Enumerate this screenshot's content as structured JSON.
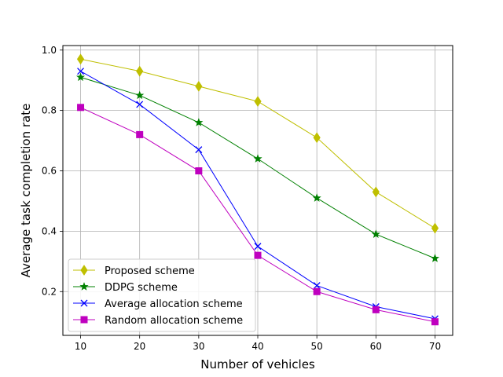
{
  "chart_data": {
    "type": "line",
    "title": "",
    "xlabel": "Number of vehicles",
    "ylabel": "Average task completion rate",
    "x": [
      10,
      20,
      30,
      40,
      50,
      60,
      70
    ],
    "xticks": [
      "10",
      "20",
      "30",
      "40",
      "50",
      "60",
      "70"
    ],
    "yticks": [
      "0.2",
      "0.4",
      "0.6",
      "0.8",
      "1.0"
    ],
    "xlim": [
      7,
      73
    ],
    "ylim": [
      0.055,
      1.015
    ],
    "grid": true,
    "legend_position": "lower-left",
    "series": [
      {
        "name": "Proposed scheme",
        "color": "#bfbf00",
        "marker": "diamond",
        "values": [
          0.97,
          0.93,
          0.88,
          0.83,
          0.71,
          0.53,
          0.41
        ]
      },
      {
        "name": "DDPG scheme",
        "color": "#008000",
        "marker": "star",
        "values": [
          0.91,
          0.85,
          0.76,
          0.64,
          0.51,
          0.39,
          0.31
        ]
      },
      {
        "name": "Average allocation scheme",
        "color": "#0000ff",
        "marker": "x",
        "values": [
          0.93,
          0.82,
          0.67,
          0.35,
          0.22,
          0.15,
          0.11
        ]
      },
      {
        "name": "Random allocation scheme",
        "color": "#bf00bf",
        "marker": "square",
        "values": [
          0.81,
          0.72,
          0.6,
          0.32,
          0.2,
          0.14,
          0.1
        ]
      }
    ]
  }
}
